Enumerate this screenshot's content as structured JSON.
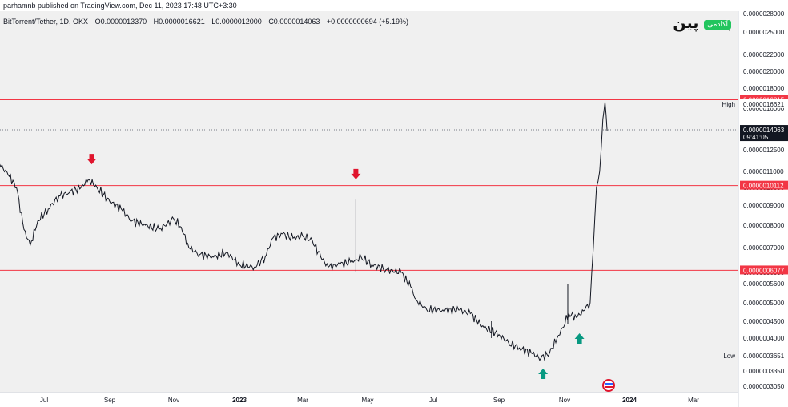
{
  "header": {
    "published_text": "parhamnb published on TradingView.com, Dec 11, 2023 17:48 UTC+3:30"
  },
  "symbol": {
    "name": "BitTorrent/Tether, 1D, OKX",
    "open": "O0.0000013370",
    "high": "H0.0000016621",
    "low": "L0.0000012000",
    "close": "C0.0000014063",
    "change": "+0.0000000694 (+5.19%)"
  },
  "logo": {
    "text": "بیت پین",
    "badge": "آکادمی"
  },
  "colors": {
    "background": "#f0f0f0",
    "axis_bg": "#ffffff",
    "candle": "#131722",
    "level_line": "#f23645",
    "arrow_down": "#e0152d",
    "arrow_up": "#089981",
    "last_price_bg": "#131722"
  },
  "chart_data": {
    "type": "line",
    "title": "",
    "xlabel": "",
    "ylabel": "",
    "x_ticks": [
      "Jul",
      "Sep",
      "Nov",
      "2023",
      "Mar",
      "May",
      "Jul",
      "Sep",
      "Nov",
      "2024",
      "Mar"
    ],
    "y_ticks": [
      "0.0000028000",
      "0.0000025000",
      "0.0000022000",
      "0.0000020000",
      "0.0000018000",
      "0.0000016000",
      "0.0000014000",
      "0.0000012500",
      "0.0000011000",
      "0.0000010000",
      "0.0000009000",
      "0.0000008000",
      "0.0000007000",
      "0.0000006000",
      "0.0000005600",
      "0.0000005000",
      "0.0000004500",
      "0.0000004000",
      "0.0000003650",
      "0.0000003350",
      "0.0000003050"
    ],
    "y_scale": "log",
    "ylim": [
      2.9e-06,
      3e-06
    ],
    "series": [
      {
        "values": [
          [
            "2022-05-20",
            1.15e-06
          ],
          [
            "2022-05-28",
            1.08e-06
          ],
          [
            "2022-06-05",
            1e-06
          ],
          [
            "2022-06-12",
            7.8e-07
          ],
          [
            "2022-06-18",
            7.1e-07
          ],
          [
            "2022-06-25",
            8.2e-07
          ],
          [
            "2022-07-05",
            8.8e-07
          ],
          [
            "2022-07-15",
            9.5e-07
          ],
          [
            "2022-07-25",
            9.7e-07
          ],
          [
            "2022-08-05",
            1e-06
          ],
          [
            "2022-08-12",
            1.05e-06
          ],
          [
            "2022-08-20",
            1e-06
          ],
          [
            "2022-09-01",
            9.2e-07
          ],
          [
            "2022-09-12",
            8.8e-07
          ],
          [
            "2022-09-22",
            8.2e-07
          ],
          [
            "2022-10-05",
            8e-07
          ],
          [
            "2022-10-18",
            7.8e-07
          ],
          [
            "2022-11-01",
            8.3e-07
          ],
          [
            "2022-11-08",
            7.9e-07
          ],
          [
            "2022-11-15",
            7e-07
          ],
          [
            "2022-11-25",
            6.7e-07
          ],
          [
            "2022-12-08",
            6.6e-07
          ],
          [
            "2022-12-20",
            6.8e-07
          ],
          [
            "2023-01-01",
            6.3e-07
          ],
          [
            "2023-01-15",
            6.2e-07
          ],
          [
            "2023-01-25",
            6.6e-07
          ],
          [
            "2023-02-01",
            7.4e-07
          ],
          [
            "2023-02-10",
            7.6e-07
          ],
          [
            "2023-02-20",
            7.4e-07
          ],
          [
            "2023-03-01",
            7.5e-07
          ],
          [
            "2023-03-10",
            7.3e-07
          ],
          [
            "2023-03-18",
            6.6e-07
          ],
          [
            "2023-03-25",
            6.2e-07
          ],
          [
            "2023-04-05",
            6.3e-07
          ],
          [
            "2023-04-15",
            6.4e-07
          ],
          [
            "2023-04-20",
            6.5e-07
          ],
          [
            "2023-04-25",
            6.6e-07
          ],
          [
            "2023-05-05",
            6.3e-07
          ],
          [
            "2023-05-18",
            6.1e-07
          ],
          [
            "2023-06-01",
            6e-07
          ],
          [
            "2023-06-10",
            5.5e-07
          ],
          [
            "2023-06-15",
            5.1e-07
          ],
          [
            "2023-06-25",
            4.8e-07
          ],
          [
            "2023-07-10",
            4.8e-07
          ],
          [
            "2023-07-25",
            4.8e-07
          ],
          [
            "2023-08-05",
            4.7e-07
          ],
          [
            "2023-08-18",
            4.3e-07
          ],
          [
            "2023-09-01",
            4.1e-07
          ],
          [
            "2023-09-10",
            3.9e-07
          ],
          [
            "2023-09-20",
            3.8e-07
          ],
          [
            "2023-10-01",
            3.7e-07
          ],
          [
            "2023-10-10",
            3.6e-07
          ],
          [
            "2023-10-18",
            3.7e-07
          ],
          [
            "2023-10-25",
            4e-07
          ],
          [
            "2023-10-30",
            4.3e-07
          ],
          [
            "2023-11-05",
            4.7e-07
          ],
          [
            "2023-11-12",
            4.6e-07
          ],
          [
            "2023-11-20",
            4.8e-07
          ],
          [
            "2023-11-25",
            5e-07
          ],
          [
            "2023-11-28",
            7e-07
          ],
          [
            "2023-12-01",
            1e-06
          ],
          [
            "2023-12-04",
            1.1e-06
          ],
          [
            "2023-12-07",
            1.5e-06
          ],
          [
            "2023-12-09",
            1.66e-06
          ],
          [
            "2023-12-11",
            1.4e-06
          ]
        ]
      }
    ],
    "levels": [
      {
        "label": "0.0000016815",
        "value": 1.6815e-06
      },
      {
        "label": "0.0000010112",
        "value": 1.0112e-06
      },
      {
        "label": "0.0000006077",
        "value": 6.077e-07
      }
    ],
    "last_price": {
      "label": "0.0000014063",
      "countdown": "09:41:05",
      "value": 1.4063e-06
    },
    "high_marker": {
      "tag": "High",
      "label": "0.0000016621",
      "value": 1.6621e-06
    },
    "low_marker": {
      "tag": "Low",
      "label": "0.0000003651",
      "value": 3.651e-07
    },
    "annotations": [
      {
        "type": "arrow-down",
        "x": "2022-08-15",
        "value": 1.18e-06
      },
      {
        "type": "arrow-down",
        "x": "2023-04-20",
        "value": 1.08e-06
      },
      {
        "type": "arrow-up",
        "x": "2023-10-12",
        "value": 3.3e-07
      },
      {
        "type": "arrow-up",
        "x": "2023-11-15",
        "value": 4e-07
      }
    ]
  }
}
